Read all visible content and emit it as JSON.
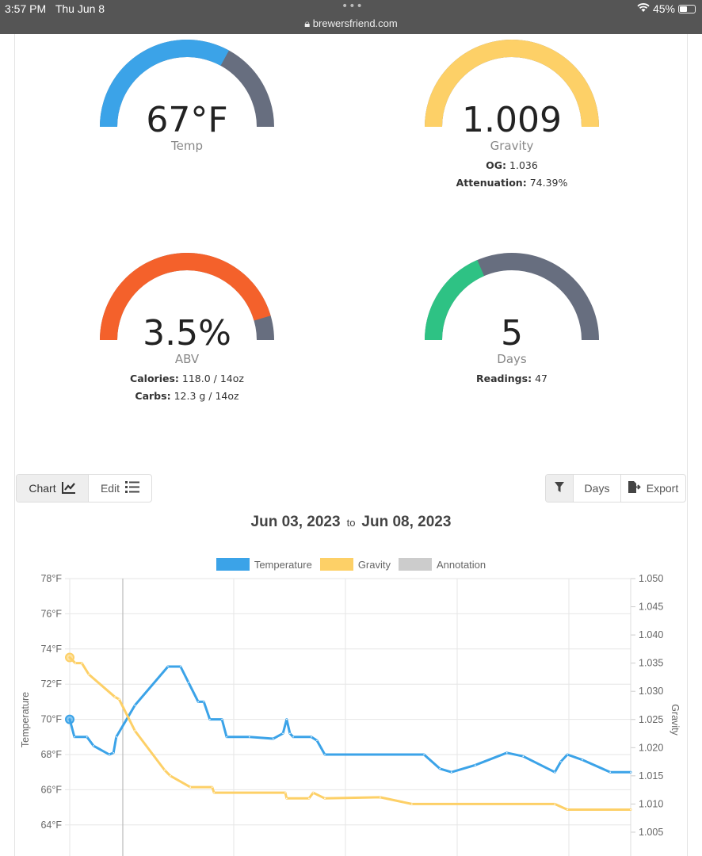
{
  "statusbar": {
    "time": "3:57 PM",
    "date": "Thu Jun 8",
    "url": "brewersfriend.com",
    "battery": "45%",
    "battery_level": 45
  },
  "gauges": {
    "temp": {
      "value": "67°F",
      "label": "Temp",
      "fill": 0.66,
      "color": "#3ba3e8"
    },
    "gravity": {
      "value": "1.009",
      "label": "Gravity",
      "fill": 1.0,
      "color": "#fdd067",
      "og_label": "OG:",
      "og_value": "1.036",
      "att_label": "Attenuation:",
      "att_value": "74.39%"
    },
    "abv": {
      "value": "3.5%",
      "label": "ABV",
      "fill": 0.91,
      "color": "#f4612b",
      "cal_label": "Calories:",
      "cal_value": "118.0 / 14oz",
      "carbs_label": "Carbs:",
      "carbs_value": "12.3 g / 14oz"
    },
    "days": {
      "value": "5",
      "label": "Days",
      "fill": 0.37,
      "color": "#2ec284",
      "readings_label": "Readings:",
      "readings_value": "47"
    },
    "track_color": "#676e7f"
  },
  "toolbar": {
    "chart_label": "Chart",
    "edit_label": "Edit",
    "days_label": "Days",
    "export_label": "Export"
  },
  "daterange": {
    "from": "Jun 03, 2023",
    "to_word": "to",
    "to": "Jun 08, 2023"
  },
  "chart_data": {
    "type": "line",
    "legend": [
      {
        "name": "Temperature",
        "color": "#3ba3e8"
      },
      {
        "name": "Gravity",
        "color": "#fdd067"
      },
      {
        "name": "Annotation",
        "color": "#cccccc"
      }
    ],
    "legend_position": "top",
    "grid": true,
    "ylabel_left": "Temperature",
    "ylabel_right": "Gravity",
    "y_left_ticks": [
      "78°F",
      "76°F",
      "74°F",
      "72°F",
      "70°F",
      "68°F",
      "66°F",
      "64°F"
    ],
    "y_right_ticks": [
      "1.050",
      "1.045",
      "1.040",
      "1.035",
      "1.030",
      "1.025",
      "1.020",
      "1.015",
      "1.010",
      "1.005"
    ],
    "ylim_left": [
      62,
      78
    ],
    "ylim_right": [
      1.0,
      1.05
    ],
    "xlim": [
      "2023-06-03T00:00",
      "2023-06-08T00:30"
    ],
    "annotation_x": "2023-06-03T11:24",
    "series": [
      {
        "name": "Temperature",
        "axis": "left",
        "color": "#3ba3e8",
        "points": [
          [
            "2023-06-03T00:00",
            70.0
          ],
          [
            "2023-06-03T01:00",
            69.0
          ],
          [
            "2023-06-03T03:42",
            69.0
          ],
          [
            "2023-06-03T05:06",
            68.5
          ],
          [
            "2023-06-03T08:30",
            68.0
          ],
          [
            "2023-06-03T09:24",
            68.1
          ],
          [
            "2023-06-03T10:00",
            69.0
          ],
          [
            "2023-06-03T14:00",
            70.8
          ],
          [
            "2023-06-03T21:06",
            73.0
          ],
          [
            "2023-06-03T23:48",
            73.0
          ],
          [
            "2023-06-04T01:30",
            72.1
          ],
          [
            "2023-06-04T03:36",
            71.0
          ],
          [
            "2023-06-04T04:48",
            71.0
          ],
          [
            "2023-06-04T06:06",
            70.0
          ],
          [
            "2023-06-04T08:42",
            70.0
          ],
          [
            "2023-06-04T09:42",
            69.0
          ],
          [
            "2023-06-04T14:36",
            69.0
          ],
          [
            "2023-06-04T19:42",
            68.9
          ],
          [
            "2023-06-04T21:48",
            69.2
          ],
          [
            "2023-06-04T22:36",
            70.0
          ],
          [
            "2023-06-04T23:18",
            69.2
          ],
          [
            "2023-06-05T00:00",
            69.0
          ],
          [
            "2023-06-05T03:54",
            69.0
          ],
          [
            "2023-06-05T05:06",
            68.8
          ],
          [
            "2023-06-05T06:48",
            68.0
          ],
          [
            "2023-06-06T04:06",
            68.0
          ],
          [
            "2023-06-06T07:30",
            67.2
          ],
          [
            "2023-06-06T10:00",
            67.0
          ],
          [
            "2023-06-06T15:06",
            67.4
          ],
          [
            "2023-06-06T21:54",
            68.1
          ],
          [
            "2023-06-07T01:24",
            67.9
          ],
          [
            "2023-06-07T08:12",
            67.0
          ],
          [
            "2023-06-07T09:30",
            67.6
          ],
          [
            "2023-06-07T10:54",
            68.0
          ],
          [
            "2023-06-07T14:06",
            67.7
          ],
          [
            "2023-06-07T20:06",
            67.0
          ],
          [
            "2023-06-08T00:30",
            67.0
          ]
        ]
      },
      {
        "name": "Gravity",
        "axis": "right",
        "color": "#fdd067",
        "points": [
          [
            "2023-06-03T00:00",
            1.036
          ],
          [
            "2023-06-03T01:12",
            1.035
          ],
          [
            "2023-06-03T02:36",
            1.035
          ],
          [
            "2023-06-03T04:06",
            1.033
          ],
          [
            "2023-06-03T09:42",
            1.029
          ],
          [
            "2023-06-03T10:36",
            1.0286
          ],
          [
            "2023-06-03T14:00",
            1.023
          ],
          [
            "2023-06-03T20:24",
            1.016
          ],
          [
            "2023-06-03T21:36",
            1.015
          ],
          [
            "2023-06-04T01:54",
            1.013
          ],
          [
            "2023-06-04T06:36",
            1.013
          ],
          [
            "2023-06-04T07:00",
            1.012
          ],
          [
            "2023-06-04T22:18",
            1.012
          ],
          [
            "2023-06-04T22:36",
            1.011
          ],
          [
            "2023-06-05T03:24",
            1.011
          ],
          [
            "2023-06-05T04:18",
            1.012
          ],
          [
            "2023-06-05T06:48",
            1.011
          ],
          [
            "2023-06-05T18:42",
            1.0112
          ],
          [
            "2023-06-06T01:30",
            1.01
          ],
          [
            "2023-06-07T08:12",
            1.01
          ],
          [
            "2023-06-07T10:54",
            1.009
          ],
          [
            "2023-06-08T00:30",
            1.009
          ]
        ]
      }
    ]
  }
}
